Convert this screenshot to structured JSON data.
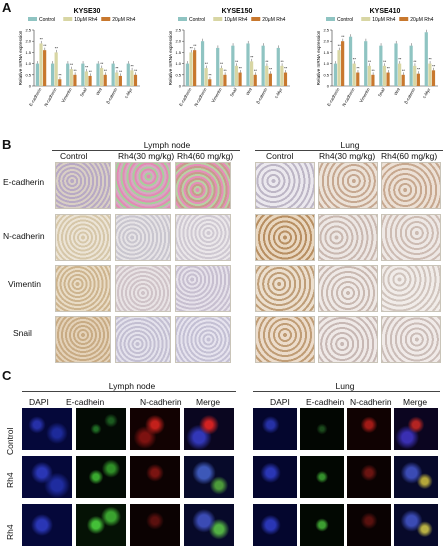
{
  "panel_labels": {
    "a": "A",
    "b": "B",
    "c": "C"
  },
  "panelA": {
    "legend": [
      "Control",
      "10μM Rh4",
      "20μM Rh4"
    ],
    "colors": {
      "control": "#8fc4c2",
      "rh4_10": "#d8d6a4",
      "rh4_20": "#c8782e"
    },
    "ylabel": "Relative mRNA expression"
  },
  "chart_data": [
    {
      "type": "bar",
      "title": "KYSE30",
      "ylabel": "Relative mRNA expression",
      "ylim": [
        0,
        2.5
      ],
      "yticks": [
        "0",
        "0.5",
        "1.0",
        "1.5",
        "2.0",
        "2.5"
      ],
      "categories": [
        "E-cadherin",
        "N-cadherin",
        "Vimentin",
        "Snail",
        "Wnt",
        "β-catenin",
        "c-Myc"
      ],
      "series": [
        {
          "name": "Control",
          "values": [
            1.0,
            1.0,
            1.0,
            1.0,
            1.0,
            1.0,
            1.0
          ]
        },
        {
          "name": "10μM Rh4",
          "values": [
            1.9,
            1.5,
            0.75,
            0.65,
            0.8,
            0.6,
            0.7
          ]
        },
        {
          "name": "20μM Rh4",
          "values": [
            1.6,
            0.3,
            0.5,
            0.45,
            0.5,
            0.45,
            0.5
          ]
        }
      ]
    },
    {
      "type": "bar",
      "title": "KYSE150",
      "ylabel": "Relative mRNA expression",
      "ylim": [
        0,
        2.5
      ],
      "yticks": [
        "0",
        "0.5",
        "1.0",
        "1.5",
        "2.0",
        "2.5"
      ],
      "categories": [
        "E-cadherin",
        "N-cadherin",
        "Vimentin",
        "Snail",
        "Wnt",
        "β-catenin",
        "c-Myc"
      ],
      "series": [
        {
          "name": "Control",
          "values": [
            1.0,
            2.0,
            1.7,
            1.8,
            1.9,
            1.8,
            1.7
          ]
        },
        {
          "name": "10μM Rh4",
          "values": [
            1.5,
            0.8,
            0.8,
            0.9,
            1.1,
            0.9,
            0.9
          ]
        },
        {
          "name": "20μM Rh4",
          "values": [
            1.6,
            0.3,
            0.5,
            0.6,
            0.5,
            0.55,
            0.6
          ]
        }
      ]
    },
    {
      "type": "bar",
      "title": "KYSE410",
      "ylabel": "Relative mRNA expression",
      "ylim": [
        0,
        2.5
      ],
      "yticks": [
        "0",
        "0.5",
        "1.0",
        "1.5",
        "2.0",
        "2.5"
      ],
      "categories": [
        "E-cadherin",
        "N-cadherin",
        "Vimentin",
        "Snail",
        "Wnt",
        "β-catenin",
        "c-Myc"
      ],
      "series": [
        {
          "name": "Control",
          "values": [
            1.0,
            2.2,
            2.0,
            1.8,
            1.9,
            1.8,
            2.4
          ]
        },
        {
          "name": "10μM Rh4",
          "values": [
            1.6,
            1.0,
            0.9,
            0.9,
            1.0,
            0.9,
            1.0
          ]
        },
        {
          "name": "20μM Rh4",
          "values": [
            2.0,
            0.6,
            0.5,
            0.6,
            0.5,
            0.55,
            0.7
          ]
        }
      ]
    }
  ],
  "panelB": {
    "sections": [
      {
        "title": "Lymph node",
        "columns": [
          "Control",
          "Rh4(30 mg/kg)",
          "Rh4(60 mg/kg)"
        ]
      },
      {
        "title": "Lung",
        "columns": [
          "Control",
          "Rh4(30 mg/kg)",
          "Rh4(60 mg/kg)"
        ]
      }
    ],
    "rows": [
      "E-cadherin",
      "N-cadherin",
      "Vimentin",
      "Snail"
    ]
  },
  "panelC": {
    "sections": [
      {
        "title": "Lymph node",
        "columns": [
          "DAPI",
          "E-cadhein",
          "N-cadherin",
          "Merge"
        ]
      },
      {
        "title": "Lung",
        "columns": [
          "DAPI",
          "E-cadhein",
          "N-cadherin",
          "Merge"
        ]
      }
    ],
    "rows": [
      "Control",
      "Rh4",
      "Rh4"
    ]
  }
}
